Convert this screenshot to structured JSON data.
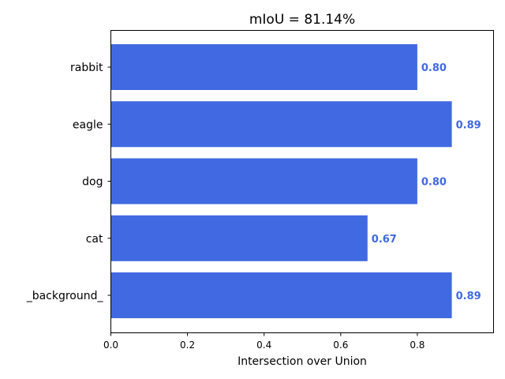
{
  "chart_data": {
    "type": "bar",
    "orientation": "horizontal",
    "title": "mIoU = 81.14%",
    "xlabel": "Intersection over Union",
    "ylabel": "",
    "categories": [
      "rabbit",
      "eagle",
      "dog",
      "cat",
      "_background_"
    ],
    "values": [
      0.8,
      0.89,
      0.8,
      0.67,
      0.89
    ],
    "value_labels": [
      "0.80",
      "0.89",
      "0.80",
      "0.67",
      "0.89"
    ],
    "xlim": [
      0,
      1.0
    ],
    "xticks": [
      0.0,
      0.2,
      0.4,
      0.6,
      0.8
    ],
    "xtick_labels": [
      "0.0",
      "0.2",
      "0.4",
      "0.6",
      "0.8"
    ],
    "grid": false,
    "legend": "none",
    "colors": {
      "bar": "#4169e1",
      "value_label": "#4169e1",
      "axis": "#000000"
    }
  }
}
